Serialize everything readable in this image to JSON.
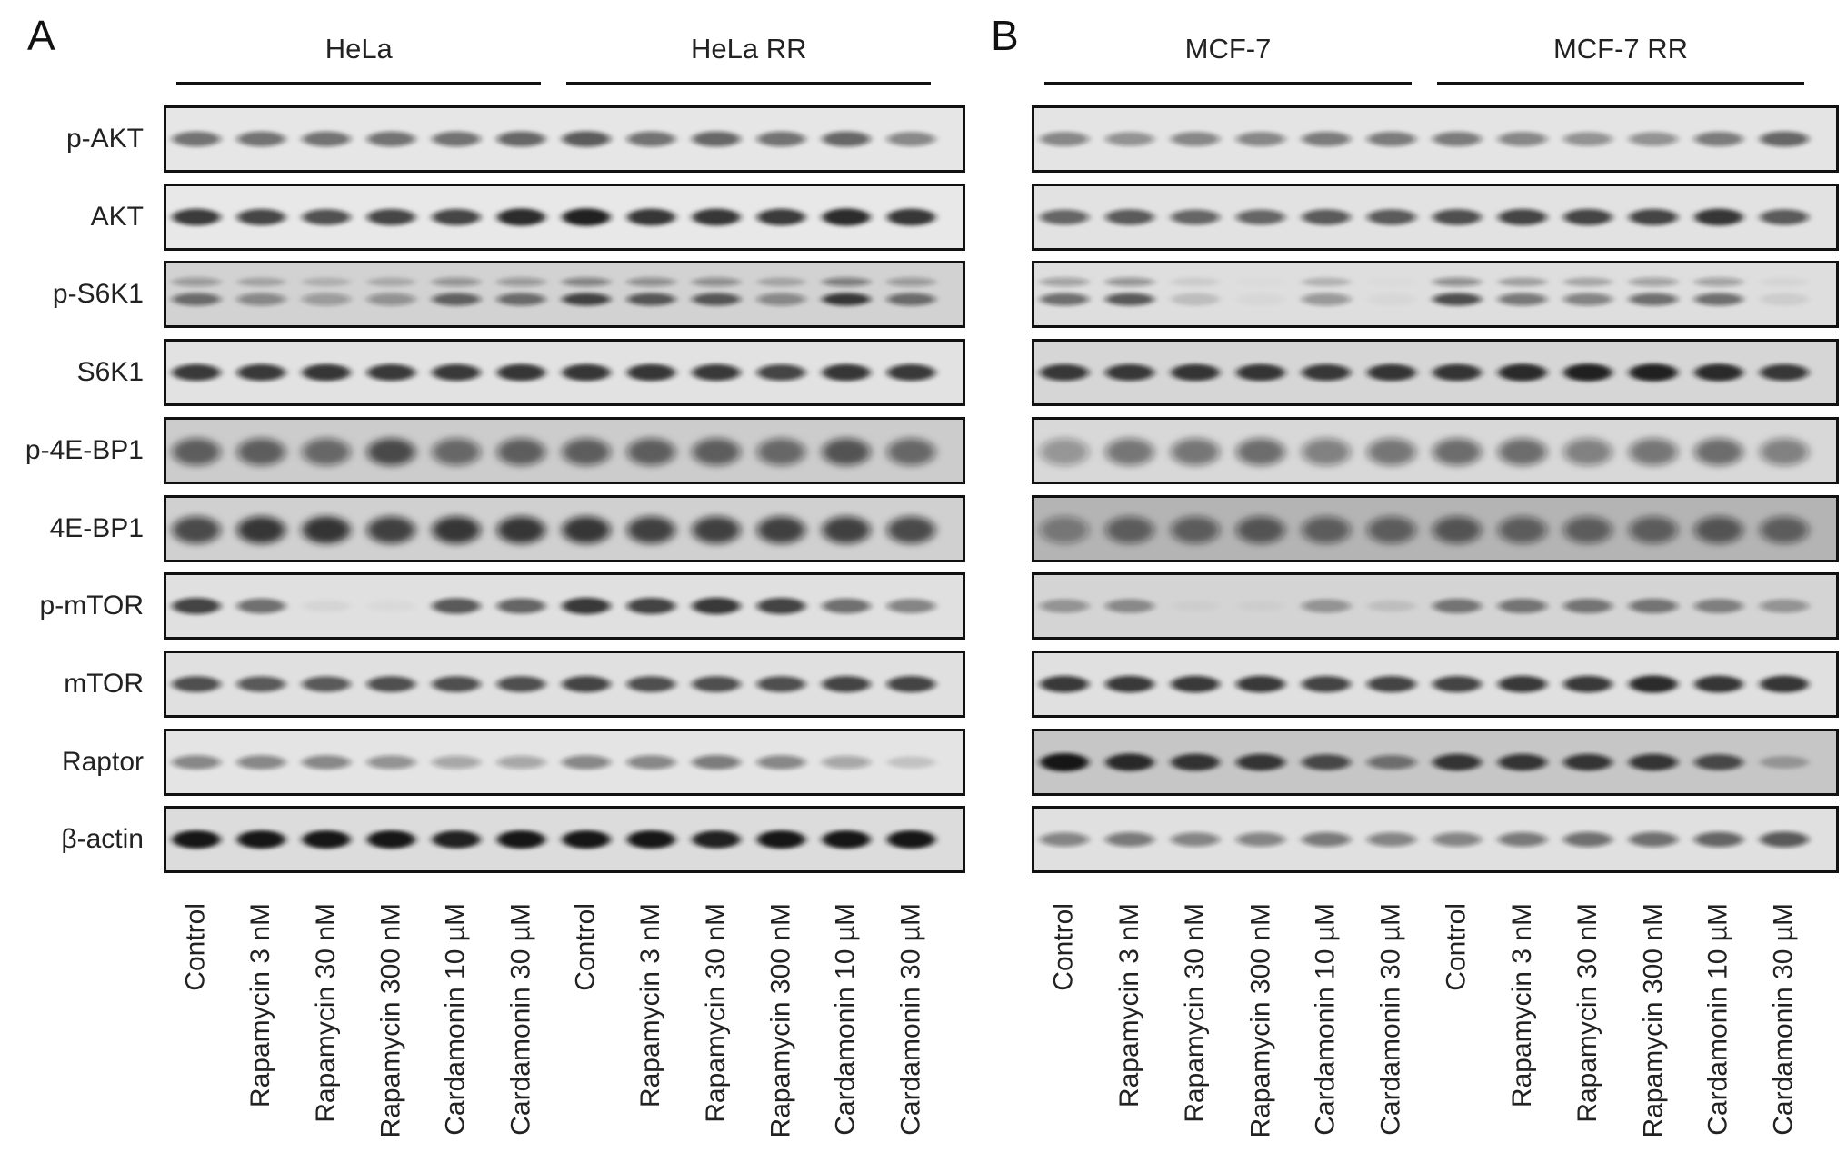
{
  "figure": {
    "panels": [
      {
        "id": "A",
        "letter": "A",
        "groups": [
          {
            "name": "HeLa",
            "lane_from": 0,
            "lane_to": 5
          },
          {
            "name": "HeLa RR",
            "lane_from": 6,
            "lane_to": 11
          }
        ],
        "lanes": [
          "Control",
          "Rapamycin 3 nM",
          "Rapamycin 30 nM",
          "Rapamycin 300 nM",
          "Cardamonin 10 µM",
          "Cardamonin 30 µM",
          "Control",
          "Rapamycin 3 nM",
          "Rapamycin 30 nM",
          "Rapamycin 300 nM",
          "Cardamonin 10 µM",
          "Cardamonin 30 µM"
        ],
        "blots": [
          {
            "label": "p-AKT",
            "background": "#e6e6e6",
            "intensity": [
              0.55,
              0.55,
              0.55,
              0.55,
              0.55,
              0.6,
              0.65,
              0.55,
              0.6,
              0.55,
              0.6,
              0.45
            ]
          },
          {
            "label": "AKT",
            "background": "#e8e8e8",
            "intensity": [
              0.8,
              0.75,
              0.7,
              0.75,
              0.75,
              0.9,
              0.95,
              0.85,
              0.85,
              0.8,
              0.9,
              0.85
            ]
          },
          {
            "label": "p-S6K1",
            "background": "#d2d2d2",
            "intensity": [
              0.55,
              0.4,
              0.3,
              0.35,
              0.6,
              0.55,
              0.75,
              0.65,
              0.65,
              0.4,
              0.8,
              0.55
            ],
            "double": true
          },
          {
            "label": "S6K1",
            "background": "#e2e2e2",
            "intensity": [
              0.8,
              0.8,
              0.85,
              0.8,
              0.8,
              0.85,
              0.85,
              0.85,
              0.8,
              0.75,
              0.85,
              0.8
            ]
          },
          {
            "label": "p-4E-BP1",
            "background": "#cccccc",
            "intensity": [
              0.6,
              0.6,
              0.55,
              0.7,
              0.55,
              0.6,
              0.6,
              0.6,
              0.6,
              0.55,
              0.65,
              0.55
            ],
            "broad": true
          },
          {
            "label": "4E-BP1",
            "background": "#d0d0d0",
            "intensity": [
              0.7,
              0.8,
              0.85,
              0.75,
              0.8,
              0.8,
              0.8,
              0.75,
              0.75,
              0.75,
              0.75,
              0.7
            ],
            "broad": true
          },
          {
            "label": "p-mTOR",
            "background": "#e0e0e0",
            "intensity": [
              0.75,
              0.55,
              0.05,
              0.03,
              0.65,
              0.6,
              0.8,
              0.75,
              0.8,
              0.75,
              0.55,
              0.45
            ]
          },
          {
            "label": "mTOR",
            "background": "#e0e0e0",
            "intensity": [
              0.7,
              0.65,
              0.65,
              0.7,
              0.7,
              0.7,
              0.75,
              0.7,
              0.7,
              0.7,
              0.75,
              0.75
            ]
          },
          {
            "label": "Raptor",
            "background": "#e4e4e4",
            "intensity": [
              0.45,
              0.45,
              0.45,
              0.4,
              0.3,
              0.3,
              0.45,
              0.45,
              0.5,
              0.45,
              0.3,
              0.15
            ]
          },
          {
            "label": "β-actin",
            "background": "#dcdcdc",
            "intensity": [
              1,
              1,
              1,
              1,
              0.95,
              1,
              1,
              1,
              0.95,
              1,
              1,
              1
            ]
          }
        ]
      },
      {
        "id": "B",
        "letter": "B",
        "groups": [
          {
            "name": "MCF-7",
            "lane_from": 0,
            "lane_to": 5
          },
          {
            "name": "MCF-7 RR",
            "lane_from": 6,
            "lane_to": 11
          }
        ],
        "lanes": [
          "Control",
          "Rapamycin 3 nM",
          "Rapamycin 30 nM",
          "Rapamycin 300 nM",
          "Cardamonin 10 µM",
          "Cardamonin 30 µM",
          "Control",
          "Rapamycin 3 nM",
          "Rapamycin 30 nM",
          "Rapamycin 300 nM",
          "Cardamonin 10 µM",
          "Cardamonin 30 µM"
        ],
        "blots": [
          {
            "label": "p-AKT",
            "background": "#e4e4e4",
            "intensity": [
              0.45,
              0.4,
              0.45,
              0.45,
              0.5,
              0.5,
              0.5,
              0.45,
              0.4,
              0.4,
              0.5,
              0.6
            ]
          },
          {
            "label": "AKT",
            "background": "#e2e2e2",
            "intensity": [
              0.6,
              0.65,
              0.6,
              0.6,
              0.65,
              0.65,
              0.7,
              0.75,
              0.75,
              0.75,
              0.85,
              0.65
            ]
          },
          {
            "label": "p-S6K1",
            "background": "#dedede",
            "intensity": [
              0.55,
              0.65,
              0.15,
              0.03,
              0.35,
              0.03,
              0.7,
              0.5,
              0.45,
              0.55,
              0.55,
              0.08
            ],
            "double": true
          },
          {
            "label": "S6K1",
            "background": "#d6d6d6",
            "intensity": [
              0.8,
              0.8,
              0.85,
              0.85,
              0.8,
              0.85,
              0.85,
              0.9,
              0.95,
              0.95,
              0.9,
              0.8
            ]
          },
          {
            "label": "p-4E-BP1",
            "background": "#d8d8d8",
            "intensity": [
              0.35,
              0.5,
              0.5,
              0.55,
              0.45,
              0.5,
              0.55,
              0.55,
              0.45,
              0.5,
              0.55,
              0.45
            ],
            "broad": true
          },
          {
            "label": "4E-BP1",
            "background": "#b4b4b4",
            "intensity": [
              0.4,
              0.55,
              0.55,
              0.6,
              0.55,
              0.55,
              0.6,
              0.55,
              0.55,
              0.55,
              0.6,
              0.55
            ],
            "broad": true
          },
          {
            "label": "p-mTOR",
            "background": "#d4d4d4",
            "intensity": [
              0.35,
              0.4,
              0.03,
              0.03,
              0.35,
              0.1,
              0.5,
              0.5,
              0.5,
              0.5,
              0.45,
              0.35
            ]
          },
          {
            "label": "mTOR",
            "background": "#e0e0e0",
            "intensity": [
              0.8,
              0.8,
              0.8,
              0.8,
              0.75,
              0.75,
              0.75,
              0.8,
              0.8,
              0.9,
              0.85,
              0.85
            ]
          },
          {
            "label": "Raptor",
            "background": "#c6c6c6",
            "intensity": [
              1,
              0.9,
              0.85,
              0.8,
              0.7,
              0.5,
              0.8,
              0.8,
              0.8,
              0.8,
              0.7,
              0.25
            ]
          },
          {
            "label": "β-actin",
            "background": "#e0e0e0",
            "intensity": [
              0.45,
              0.5,
              0.45,
              0.45,
              0.5,
              0.45,
              0.45,
              0.5,
              0.55,
              0.55,
              0.6,
              0.65
            ]
          }
        ]
      }
    ]
  }
}
